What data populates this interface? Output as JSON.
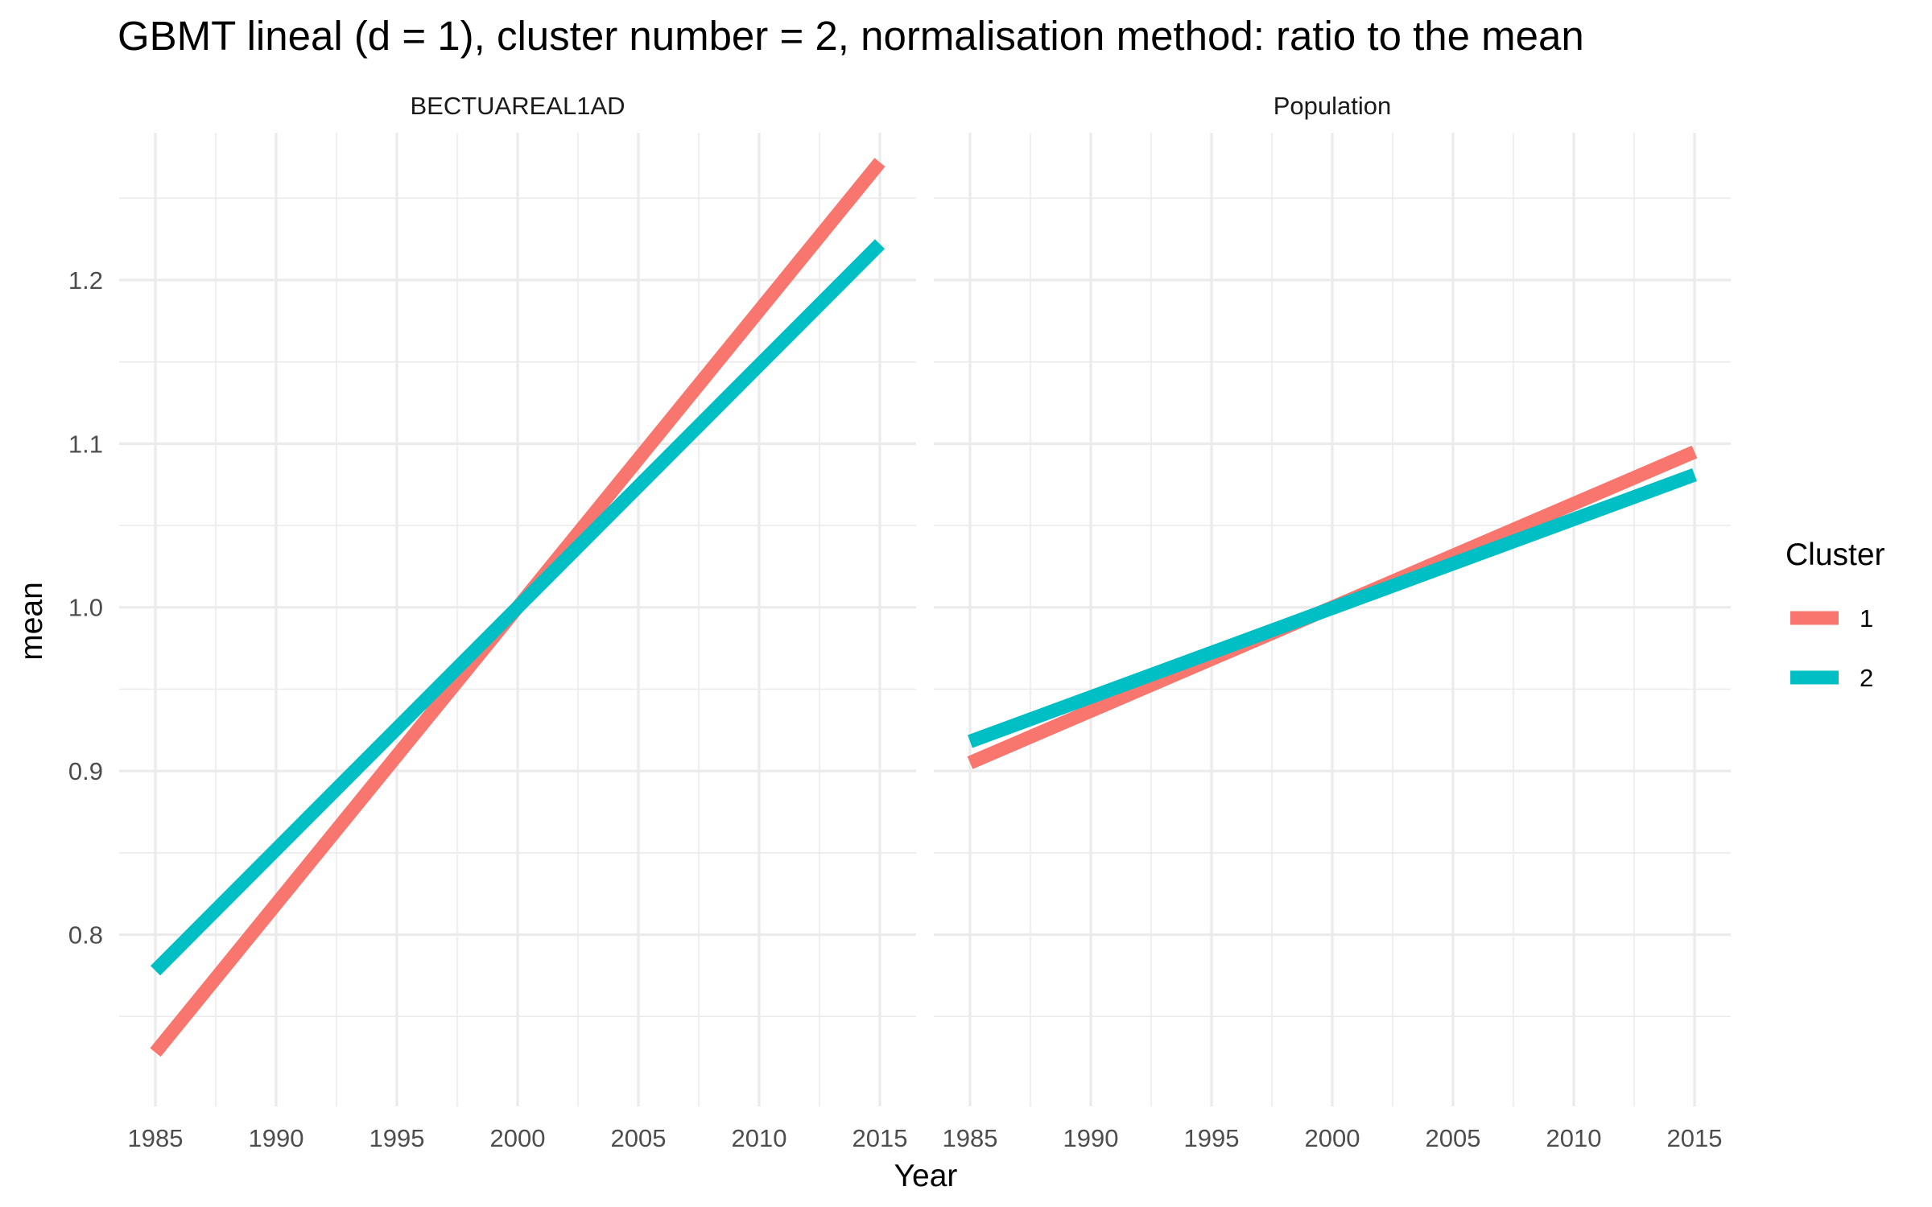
{
  "chart_data": {
    "type": "line",
    "title": "GBMT lineal (d = 1), cluster number = 2, normalisation method: ratio to the mean",
    "xlabel": "Year",
    "ylabel": "mean",
    "xlim": [
      1983.5,
      2016.5
    ],
    "ylim": [
      0.695,
      1.29
    ],
    "x_ticks": [
      1985,
      1990,
      1995,
      2000,
      2005,
      2010,
      2015
    ],
    "y_ticks": [
      0.8,
      0.9,
      1.0,
      1.1,
      1.2
    ],
    "y_tick_labels": [
      "0.8",
      "0.9",
      "1.0",
      "1.1",
      "1.2"
    ],
    "grid": true,
    "legend": {
      "title": "Cluster",
      "position": "right",
      "entries": [
        {
          "label": "1",
          "color": "#F8766D"
        },
        {
          "label": "2",
          "color": "#00BFC4"
        }
      ]
    },
    "panels": [
      {
        "name": "BECTUAREAL1AD",
        "series": [
          {
            "name": "1",
            "color": "#F8766D",
            "x": [
              1985,
              2015
            ],
            "y": [
              0.728,
              1.272
            ]
          },
          {
            "name": "2",
            "color": "#00BFC4",
            "x": [
              1985,
              2015
            ],
            "y": [
              0.778,
              1.222
            ]
          }
        ]
      },
      {
        "name": "Population",
        "series": [
          {
            "name": "1",
            "color": "#F8766D",
            "x": [
              1985,
              2015
            ],
            "y": [
              0.905,
              1.095
            ]
          },
          {
            "name": "2",
            "color": "#00BFC4",
            "x": [
              1985,
              2015
            ],
            "y": [
              0.918,
              1.081
            ]
          }
        ]
      }
    ]
  }
}
